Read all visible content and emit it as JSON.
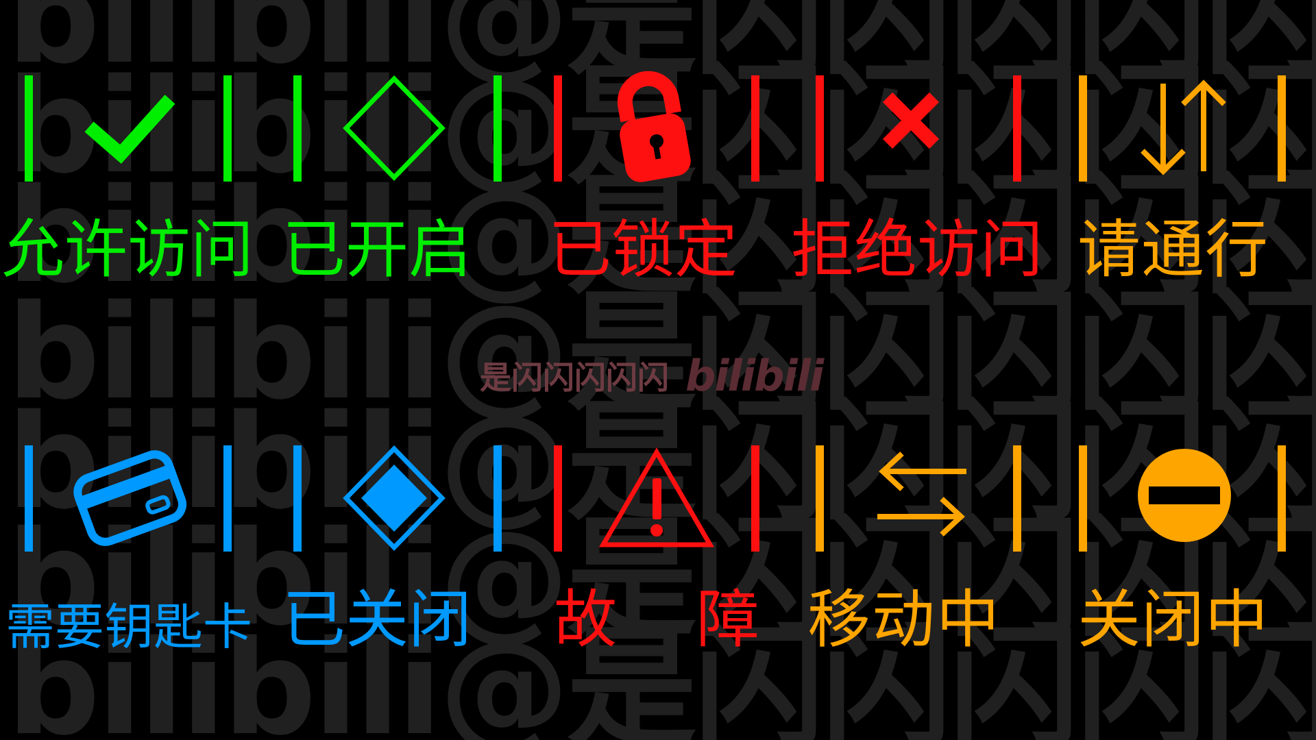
{
  "watermark": {
    "rows": [
      "bilibili@是闪闪闪闪闪",
      "bilibili@是闪闪闪闪闪",
      "bilibili@是闪闪闪闪闪",
      "bilibili@是闪闪闪闪闪",
      "bilibili@是闪闪闪闪闪",
      "bilibili@是闪闪闪闪闪",
      "bilibili@是闪闪闪闪闪"
    ],
    "color": "#202020"
  },
  "credit": {
    "author": "是闪闪闪闪闪",
    "logo": "bilibili"
  },
  "panels": [
    {
      "label": "允许访问",
      "color": "#00ee00",
      "icon": "check-icon"
    },
    {
      "label": "已开启",
      "color": "#00ee00",
      "icon": "diamond-outline-icon"
    },
    {
      "label": "已锁定",
      "color": "#ff1010",
      "icon": "padlock-icon"
    },
    {
      "label": "拒绝访问",
      "color": "#ff1010",
      "icon": "x-mark-icon"
    },
    {
      "label": "请通行",
      "color": "#ffa500",
      "icon": "up-down-arrows-icon"
    },
    {
      "label": "需要钥匙卡",
      "color": "#0099ff",
      "icon": "keycard-icon"
    },
    {
      "label": "已关闭",
      "color": "#0099ff",
      "icon": "diamond-filled-icon"
    },
    {
      "label": "故　障",
      "color": "#ff1010",
      "icon": "warning-triangle-icon"
    },
    {
      "label": "移动中",
      "color": "#ffa500",
      "icon": "left-right-arrows-icon"
    },
    {
      "label": "关闭中",
      "color": "#ffa500",
      "icon": "no-entry-icon"
    }
  ]
}
